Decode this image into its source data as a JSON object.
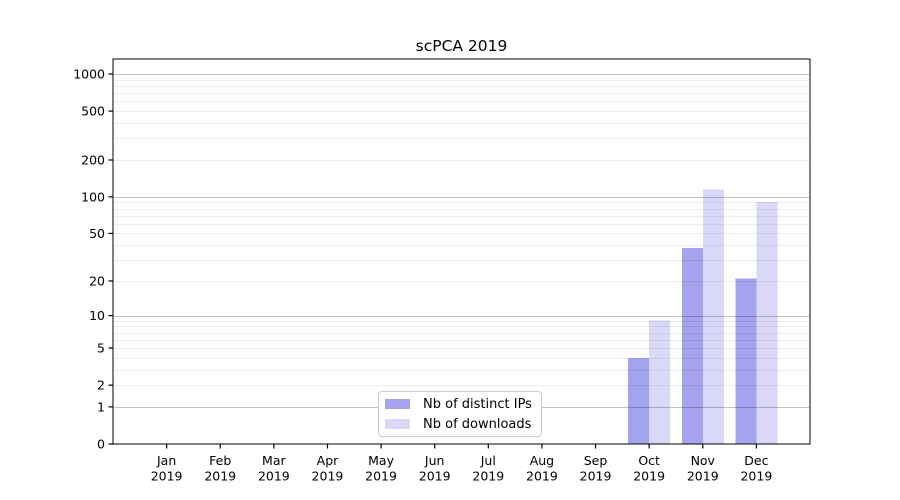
{
  "chart_data": {
    "type": "bar",
    "title": "scPCA 2019",
    "categories": [
      "Jan",
      "Feb",
      "Mar",
      "Apr",
      "May",
      "Jun",
      "Jul",
      "Aug",
      "Sep",
      "Oct",
      "Nov",
      "Dec"
    ],
    "x_tick_year": "2019",
    "series": [
      {
        "key": "distinct-ips",
        "name": "Nb of distinct IPs",
        "color": "#a3a3ef",
        "values": [
          0,
          0,
          0,
          0,
          0,
          0,
          0,
          0,
          0,
          4,
          38,
          21
        ]
      },
      {
        "key": "downloads",
        "name": "Nb of downloads",
        "color": "#d9d9f7",
        "values": [
          0,
          0,
          0,
          0,
          0,
          0,
          0,
          0,
          0,
          9,
          115,
          91
        ]
      }
    ],
    "y_ticks": [
      0,
      1,
      2,
      5,
      10,
      20,
      50,
      100,
      200,
      500,
      1000
    ],
    "y_scale": "log1p",
    "ylim": [
      0,
      1325
    ],
    "xlabel": "",
    "ylabel": "",
    "grid": true,
    "grid_over_bars": true,
    "legend_position": "lower-center-inside"
  },
  "colors": {
    "grid_major": "rgba(0,0,0,0.24)",
    "grid_minor": "rgba(0,0,0,0.07)",
    "axis": "#000000",
    "text": "#000000",
    "legend_border": "#cccccc",
    "background": "#ffffff"
  }
}
